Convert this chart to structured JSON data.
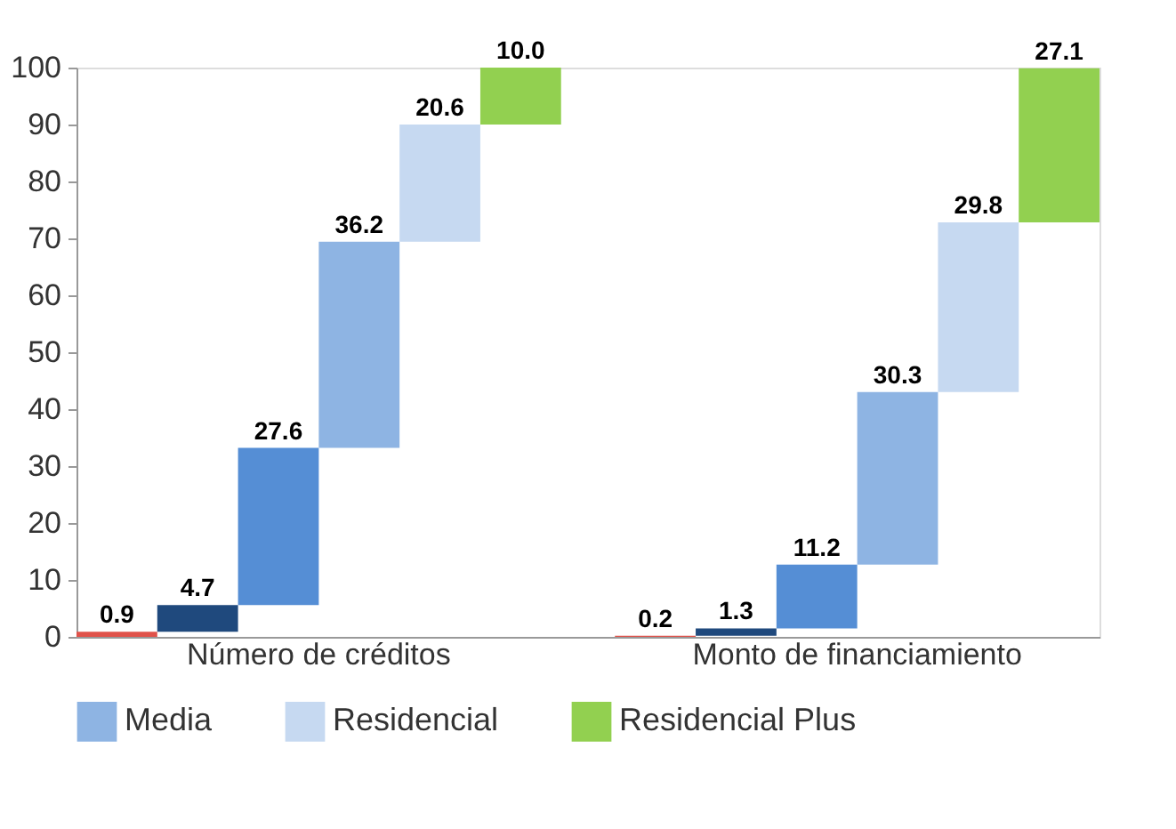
{
  "chart_data": {
    "type": "bar",
    "categories": [
      "Número de créditos",
      "Monto de financiamiento"
    ],
    "series": [
      {
        "color": "#e0524a",
        "values": [
          0.9,
          0.2
        ],
        "base": [
          0,
          0
        ],
        "value_labels": [
          "0.9",
          "0.2"
        ]
      },
      {
        "color": "#1f497d",
        "values": [
          4.7,
          1.3
        ],
        "base": [
          0.9,
          0.2
        ],
        "value_labels": [
          "4.7",
          "1.3"
        ]
      },
      {
        "color": "#558ed5",
        "values": [
          27.6,
          11.2
        ],
        "base": [
          5.6,
          1.5
        ],
        "value_labels": [
          "27.6",
          "11.2"
        ]
      },
      {
        "name": "Media",
        "color": "#8eb4e3",
        "values": [
          36.2,
          30.3
        ],
        "base": [
          33.2,
          12.7
        ],
        "value_labels": [
          "36.2",
          "30.3"
        ]
      },
      {
        "name": "Residencial",
        "color": "#c6d9f1",
        "values": [
          20.6,
          29.8
        ],
        "base": [
          69.4,
          43.0
        ],
        "value_labels": [
          "20.6",
          "29.8"
        ]
      },
      {
        "name": "Residencial Plus",
        "color": "#92d050",
        "values": [
          10.0,
          27.1
        ],
        "base": [
          90.0,
          72.8
        ],
        "value_labels": [
          "10.0",
          "27.1"
        ]
      }
    ],
    "ylim": [
      0,
      100
    ],
    "yticks": [
      0,
      10,
      20,
      30,
      40,
      50,
      60,
      70,
      80,
      90,
      100
    ],
    "grid": false,
    "legend": "bottom"
  }
}
